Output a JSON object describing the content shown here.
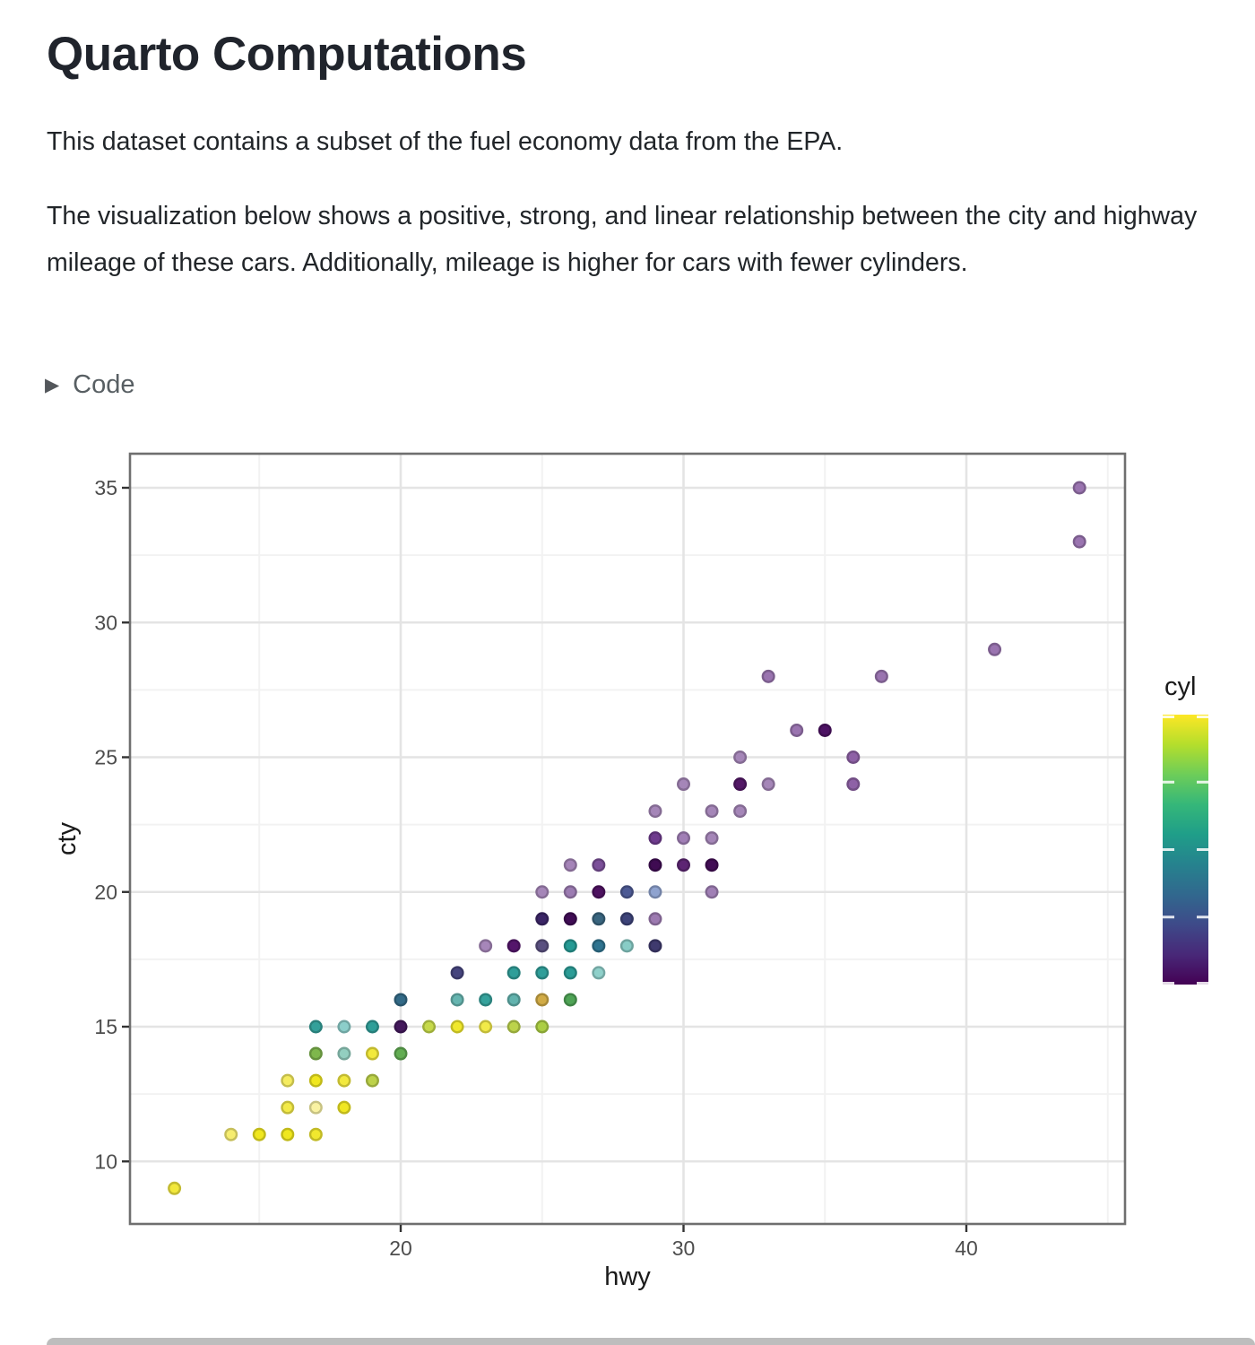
{
  "page": {
    "title": "Quarto Computations",
    "paragraph1": "This dataset contains a subset of the fuel economy data from the EPA.",
    "paragraph2": "The visualization below shows a positive, strong, and linear relationship between the city and highway mileage of these cars. Additionally, mileage is higher for cars with fewer cylinders.",
    "code_toggle_label": "Code",
    "caret_icon": "▶"
  },
  "chart_data": {
    "type": "scatter",
    "title": "",
    "xlabel": "hwy",
    "ylabel": "cty",
    "x_ticks": [
      20,
      30,
      40
    ],
    "x_minor": [
      15,
      25,
      35,
      45
    ],
    "y_ticks": [
      10,
      15,
      20,
      25,
      30,
      35
    ],
    "y_minor": [
      12.5,
      17.5,
      22.5,
      27.5,
      32.5
    ],
    "xlim": [
      10.4,
      45.6
    ],
    "ylim": [
      7.7,
      36.3
    ],
    "grid": true,
    "legend": {
      "title": "cyl",
      "type": "colorbar",
      "scale": "viridis",
      "domain": [
        4,
        8
      ],
      "ticks": [
        4,
        5,
        6,
        7,
        8
      ],
      "position": "right",
      "gradient_top_to_bottom": [
        "#fde725",
        "#b4de2c",
        "#6dcd59",
        "#35b779",
        "#1f9e89",
        "#26828e",
        "#31688e",
        "#3e4a89",
        "#482878",
        "#440154"
      ]
    },
    "point_fields": [
      "hwy",
      "cty",
      "color"
    ],
    "points": [
      [
        12,
        9,
        "#f2e83c"
      ],
      [
        14,
        11,
        "#f6ed70"
      ],
      [
        15,
        11,
        "#f0e71f"
      ],
      [
        16,
        11,
        "#f0e71f"
      ],
      [
        17,
        11,
        "#f1e82e"
      ],
      [
        16,
        12,
        "#f3ea48"
      ],
      [
        17,
        12,
        "#f9f2a2"
      ],
      [
        18,
        12,
        "#f0e722"
      ],
      [
        16,
        13,
        "#f5ec5f"
      ],
      [
        17,
        13,
        "#f0e71f"
      ],
      [
        18,
        13,
        "#f2e93f"
      ],
      [
        19,
        13,
        "#bdd24a"
      ],
      [
        17,
        14,
        "#7eb74c"
      ],
      [
        18,
        14,
        "#93cfc0"
      ],
      [
        19,
        14,
        "#f2e93b"
      ],
      [
        20,
        14,
        "#62ad52"
      ],
      [
        17,
        15,
        "#33a09a"
      ],
      [
        18,
        15,
        "#8cceca"
      ],
      [
        19,
        15,
        "#2f9e98"
      ],
      [
        20,
        15,
        "#44195c"
      ],
      [
        21,
        15,
        "#c6d94a"
      ],
      [
        22,
        15,
        "#f0e82c"
      ],
      [
        23,
        15,
        "#f2ea48"
      ],
      [
        24,
        15,
        "#bcd34b"
      ],
      [
        25,
        15,
        "#abce44"
      ],
      [
        20,
        16,
        "#336a87"
      ],
      [
        22,
        16,
        "#66b5b0"
      ],
      [
        23,
        16,
        "#36a29c"
      ],
      [
        24,
        16,
        "#62b3ae"
      ],
      [
        25,
        16,
        "#d1ab46"
      ],
      [
        26,
        16,
        "#4fa456"
      ],
      [
        22,
        17,
        "#46457e"
      ],
      [
        24,
        17,
        "#2f9e99"
      ],
      [
        25,
        17,
        "#2f9e99"
      ],
      [
        26,
        17,
        "#2b9c96"
      ],
      [
        27,
        17,
        "#8fd0ca"
      ],
      [
        23,
        18,
        "#a686b9"
      ],
      [
        24,
        18,
        "#54156b"
      ],
      [
        25,
        18,
        "#5a5080"
      ],
      [
        26,
        18,
        "#259a94"
      ],
      [
        27,
        18,
        "#2f7490"
      ],
      [
        28,
        18,
        "#88ccc6"
      ],
      [
        29,
        18,
        "#3f3a6e"
      ],
      [
        25,
        19,
        "#3b2566"
      ],
      [
        26,
        19,
        "#400c55"
      ],
      [
        27,
        19,
        "#39657f"
      ],
      [
        28,
        19,
        "#3d4379"
      ],
      [
        29,
        19,
        "#9d7ab1"
      ],
      [
        25,
        20,
        "#a586b8"
      ],
      [
        26,
        20,
        "#9c7cb2"
      ],
      [
        27,
        20,
        "#4d1260"
      ],
      [
        28,
        20,
        "#4d5a94"
      ],
      [
        29,
        20,
        "#8fa3cf"
      ],
      [
        31,
        20,
        "#a07fb5"
      ],
      [
        26,
        21,
        "#a584b8"
      ],
      [
        27,
        21,
        "#7b4f99"
      ],
      [
        29,
        21,
        "#3f0b52"
      ],
      [
        30,
        21,
        "#5d2573"
      ],
      [
        31,
        21,
        "#420d55"
      ],
      [
        29,
        22,
        "#6f3b8e"
      ],
      [
        30,
        22,
        "#a17fb6"
      ],
      [
        31,
        22,
        "#a586b8"
      ],
      [
        29,
        23,
        "#a586b8"
      ],
      [
        31,
        23,
        "#a586b8"
      ],
      [
        32,
        23,
        "#a586b8"
      ],
      [
        30,
        24,
        "#a586b8"
      ],
      [
        32,
        24,
        "#531866"
      ],
      [
        33,
        24,
        "#a586b8"
      ],
      [
        36,
        24,
        "#8e61a6"
      ],
      [
        32,
        25,
        "#a586b8"
      ],
      [
        36,
        25,
        "#8e61a6"
      ],
      [
        34,
        26,
        "#9a74b0"
      ],
      [
        35,
        26,
        "#4c1263"
      ],
      [
        33,
        28,
        "#9a74b0"
      ],
      [
        37,
        28,
        "#9a74b0"
      ],
      [
        41,
        29,
        "#9a74b0"
      ],
      [
        44,
        33,
        "#9a74b0"
      ],
      [
        44,
        35,
        "#9a74b0"
      ]
    ],
    "style": {
      "panel_border": "#6f6f6f",
      "grid_major": "#e4e4e4",
      "grid_minor": "#f2f2f2",
      "tick_color": "#333333",
      "tick_label_color": "#4d4d4d",
      "axis_title_color": "#1a1a1a",
      "point_radius": 6.3,
      "point_stroke_width": 2.4
    }
  }
}
